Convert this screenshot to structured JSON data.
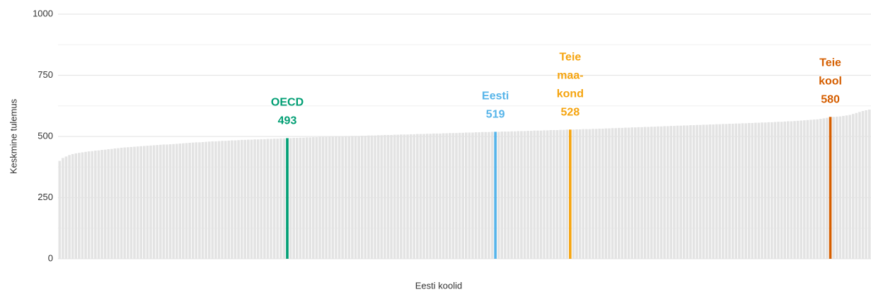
{
  "chart_data": {
    "type": "bar",
    "x_label": "Eesti koolid",
    "y_label": "Keskmine tulemus",
    "color": "#e3e3e3",
    "ylim": [
      0,
      1000
    ],
    "yticks": [
      0,
      250,
      500,
      750,
      1000
    ],
    "minor_yticks": [
      125,
      375,
      625,
      875
    ],
    "grid": true,
    "values": [
      400,
      412,
      418,
      424,
      428,
      431,
      433,
      435,
      437,
      439,
      440,
      442,
      443,
      445,
      446,
      448,
      449,
      451,
      452,
      454,
      455,
      456,
      457,
      458,
      459,
      460,
      461,
      462,
      463,
      464,
      465,
      466,
      467,
      467,
      468,
      469,
      470,
      471,
      472,
      473,
      474,
      475,
      476,
      476,
      477,
      478,
      479,
      480,
      480,
      481,
      482,
      482,
      483,
      484,
      484,
      485,
      486,
      486,
      487,
      487,
      488,
      488,
      489,
      489,
      490,
      490,
      491,
      491,
      492,
      492,
      493,
      493,
      494,
      494,
      495,
      495,
      496,
      496,
      497,
      497,
      498,
      498,
      498,
      499,
      499,
      500,
      500,
      500,
      501,
      501,
      502,
      502,
      502,
      503,
      503,
      504,
      504,
      504,
      505,
      505,
      506,
      506,
      506,
      507,
      507,
      508,
      508,
      508,
      509,
      509,
      510,
      510,
      510,
      511,
      511,
      512,
      512,
      512,
      513,
      513,
      514,
      514,
      514,
      515,
      515,
      516,
      516,
      516,
      517,
      517,
      518,
      518,
      518,
      519,
      519,
      519,
      520,
      520,
      520,
      521,
      521,
      522,
      522,
      522,
      523,
      523,
      524,
      524,
      524,
      525,
      525,
      526,
      526,
      526,
      527,
      527,
      528,
      528,
      528,
      529,
      529,
      530,
      530,
      530,
      531,
      531,
      532,
      532,
      533,
      533,
      534,
      534,
      535,
      535,
      536,
      536,
      537,
      537,
      538,
      538,
      539,
      539,
      540,
      540,
      541,
      541,
      542,
      542,
      543,
      543,
      544,
      544,
      545,
      545,
      546,
      546,
      547,
      547,
      548,
      548,
      549,
      549,
      550,
      550,
      551,
      551,
      552,
      552,
      553,
      553,
      554,
      554,
      555,
      555,
      556,
      556,
      557,
      557,
      558,
      558,
      559,
      560,
      560,
      561,
      562,
      562,
      563,
      564,
      565,
      566,
      567,
      568,
      569,
      570,
      572,
      574,
      576,
      580,
      580,
      581,
      582,
      584,
      586,
      588,
      592,
      596,
      600,
      604,
      607,
      610
    ],
    "highlights": [
      {
        "index": 70,
        "lines": [
          "OECD"
        ],
        "color": "#009e73"
      },
      {
        "index": 134,
        "lines": [
          "Eesti"
        ],
        "color": "#56b4e9"
      },
      {
        "index": 157,
        "lines": [
          "Teie",
          "maa-",
          "kond"
        ],
        "color": "#f5a40f"
      },
      {
        "index": 237,
        "lines": [
          "Teie",
          "kool"
        ],
        "color": "#d55e00"
      }
    ]
  }
}
